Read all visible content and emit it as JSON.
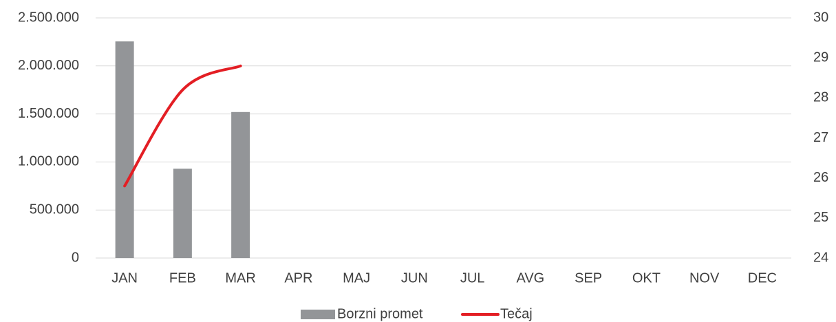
{
  "chart_data": {
    "type": "combo",
    "categories": [
      "JAN",
      "FEB",
      "MAR",
      "APR",
      "MAJ",
      "JUN",
      "JUL",
      "AVG",
      "SEP",
      "OKT",
      "NOV",
      "DEC"
    ],
    "series": [
      {
        "name": "Borzni promet",
        "type": "bar",
        "color": "#939598",
        "values": [
          2255000,
          930000,
          1520000,
          null,
          null,
          null,
          null,
          null,
          null,
          null,
          null,
          null
        ]
      },
      {
        "name": "Tečaj",
        "type": "line",
        "axis": "y2",
        "color": "#e31e24",
        "values": [
          25.8,
          28.2,
          28.8,
          null,
          null,
          null,
          null,
          null,
          null,
          null,
          null,
          null
        ]
      }
    ],
    "ylim": [
      0,
      2500000
    ],
    "yticks": [
      0,
      {
        "value": 500000,
        "label": "500.000"
      },
      {
        "value": 1000000,
        "label": "1.000.000"
      },
      {
        "value": 1500000,
        "label": "1.500.000"
      },
      {
        "value": 2000000,
        "label": "2.000.000"
      },
      {
        "value": 2500000,
        "label": "2.500.000"
      }
    ],
    "y2lim": [
      24,
      30
    ],
    "y2ticks": [
      24,
      25,
      26,
      27,
      28,
      29,
      30
    ],
    "grid": true,
    "legend": "bottom"
  }
}
